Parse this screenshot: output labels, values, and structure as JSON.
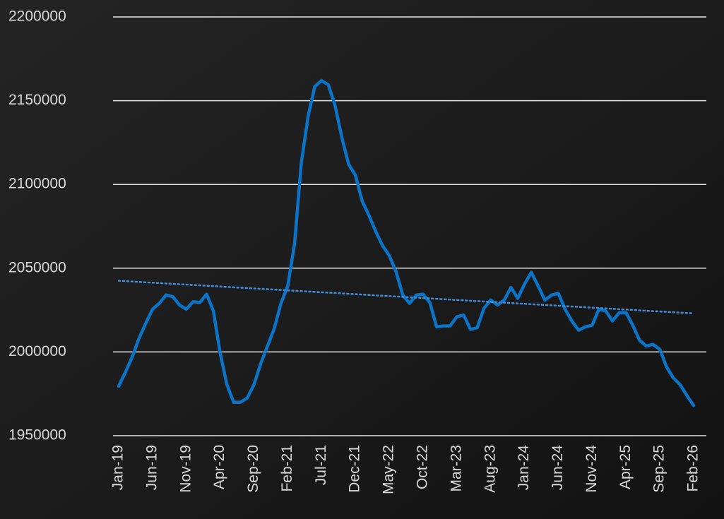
{
  "chart_data": {
    "type": "line",
    "categories": [
      "Jan-19",
      null,
      null,
      null,
      null,
      "Jun-19",
      null,
      null,
      null,
      null,
      "Nov-19",
      null,
      null,
      null,
      null,
      "Apr-20",
      null,
      null,
      null,
      null,
      "Sep-20",
      null,
      null,
      null,
      null,
      "Feb-21",
      null,
      null,
      null,
      null,
      "Jul-21",
      null,
      null,
      null,
      null,
      "Dec-21",
      null,
      null,
      null,
      null,
      "May-22",
      null,
      null,
      null,
      null,
      "Oct-22",
      null,
      null,
      null,
      null,
      "Mar-23",
      null,
      null,
      null,
      null,
      "Aug-23",
      null,
      null,
      null,
      null,
      "Jan-24",
      null,
      null,
      null,
      null,
      "Jun-24",
      null,
      null,
      null,
      null,
      "Nov-24",
      null,
      null,
      null,
      null,
      "Apr-25",
      null,
      null,
      null,
      null,
      "Sep-25",
      null,
      null,
      null,
      null,
      "Feb-26"
    ],
    "series": [
      {
        "color": "#0a74c8",
        "values": [
          1979500,
          1988000,
          1997000,
          2008000,
          2017000,
          2025500,
          2029000,
          2034000,
          2033000,
          2028000,
          2025500,
          2030000,
          2029500,
          2034500,
          2024500,
          1999500,
          1980500,
          1970000,
          1970000,
          1972500,
          1980500,
          1993000,
          2003500,
          2014000,
          2029000,
          2039500,
          2064500,
          2113000,
          2140500,
          2158500,
          2162000,
          2159500,
          2147000,
          2128000,
          2112000,
          2105500,
          2090000,
          2081500,
          2072000,
          2063500,
          2057500,
          2048000,
          2034000,
          2029000,
          2034000,
          2034500,
          2029500,
          2015000,
          2015500,
          2015500,
          2021000,
          2022000,
          2013500,
          2014500,
          2026000,
          2031000,
          2028000,
          2031000,
          2038500,
          2032000,
          2040500,
          2047500,
          2039500,
          2031000,
          2034000,
          2035000,
          2025500,
          2018500,
          2013000,
          2015000,
          2016000,
          2025500,
          2024500,
          2018500,
          2023500,
          2023500,
          2016000,
          2007000,
          2003500,
          2004500,
          2001500,
          1991000,
          1984500,
          1980500,
          1974000,
          1968000
        ]
      }
    ],
    "trendline": {
      "color": "#3d8fdc",
      "values": [
        2042500,
        2023000
      ]
    },
    "ylim": [
      1950000,
      2200000
    ],
    "yticks": [
      1950000,
      2000000,
      2050000,
      2100000,
      2150000,
      2200000
    ],
    "grid": true
  }
}
